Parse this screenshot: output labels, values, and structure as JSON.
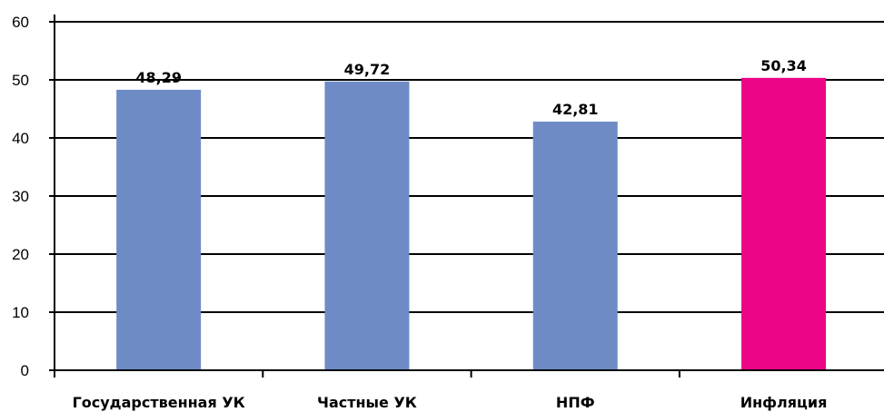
{
  "chart_data": {
    "type": "bar",
    "categories": [
      "Государственная УК",
      "Частные УК",
      "НПФ",
      "Инфляция"
    ],
    "values": [
      48.29,
      49.72,
      42.81,
      50.34
    ],
    "data_labels": [
      "48,29",
      "49,72",
      "42,81",
      "50,34"
    ],
    "ylim": [
      0,
      60
    ],
    "yticks": [
      0,
      10,
      20,
      30,
      40,
      50,
      60
    ],
    "grid": true,
    "legend": "none",
    "colors": {
      "bars": [
        "#6E8BC6",
        "#6E8BC6",
        "#6E8BC6",
        "#EC0587"
      ],
      "grid": "#000000",
      "axis": "#000000"
    }
  }
}
